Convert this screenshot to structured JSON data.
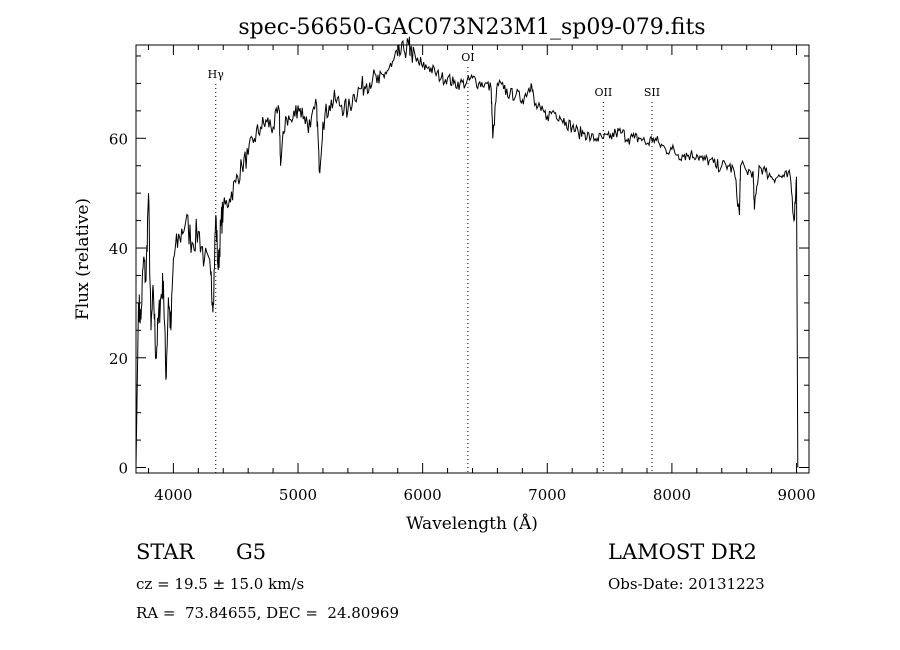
{
  "chart_data": {
    "type": "line",
    "title": "spec-56650-GAC073N23M1_sp09-079.fits",
    "xlabel": "Wavelength (Å)",
    "ylabel": "Flux (relative)",
    "xlim": [
      3700,
      9100
    ],
    "ylim": [
      -1,
      77
    ],
    "x_ticks": [
      4000,
      5000,
      6000,
      7000,
      8000,
      9000
    ],
    "y_ticks": [
      0,
      20,
      40,
      60
    ],
    "x_tick_labels": [
      "4000",
      "5000",
      "6000",
      "7000",
      "8000",
      "9000"
    ],
    "y_tick_labels": [
      "0",
      "20",
      "40",
      "60"
    ],
    "grid": false,
    "line_color": "#000000",
    "spectrum": {
      "x": [
        3700,
        3720,
        3740,
        3760,
        3780,
        3800,
        3820,
        3840,
        3860,
        3880,
        3900,
        3920,
        3940,
        3960,
        3980,
        4000,
        4050,
        4100,
        4150,
        4200,
        4250,
        4300,
        4320,
        4340,
        4360,
        4380,
        4400,
        4450,
        4500,
        4550,
        4600,
        4650,
        4700,
        4750,
        4800,
        4850,
        4860,
        4900,
        4950,
        5000,
        5050,
        5100,
        5150,
        5170,
        5200,
        5250,
        5300,
        5350,
        5400,
        5450,
        5500,
        5550,
        5600,
        5650,
        5700,
        5750,
        5800,
        5850,
        5890,
        5900,
        5950,
        6000,
        6050,
        6100,
        6150,
        6200,
        6250,
        6300,
        6350,
        6400,
        6450,
        6500,
        6550,
        6563,
        6600,
        6650,
        6700,
        6750,
        6800,
        6850,
        6870,
        6900,
        6950,
        7000,
        7050,
        7100,
        7150,
        7200,
        7250,
        7300,
        7350,
        7400,
        7450,
        7500,
        7550,
        7600,
        7650,
        7700,
        7750,
        7800,
        7850,
        7900,
        7950,
        8000,
        8050,
        8100,
        8150,
        8200,
        8250,
        8300,
        8350,
        8400,
        8450,
        8500,
        8542,
        8550,
        8600,
        8650,
        8662,
        8700,
        8750,
        8800,
        8850,
        8900,
        8950,
        8980,
        9000,
        9010
      ],
      "y": [
        0,
        30,
        27,
        38,
        34,
        50,
        25,
        32,
        20,
        27,
        31,
        34,
        16,
        31,
        25,
        38,
        42,
        45,
        41,
        43,
        38,
        35,
        30,
        46,
        36,
        44,
        47,
        49,
        52,
        55,
        57,
        60,
        62,
        63,
        62,
        65,
        55,
        64,
        63,
        66,
        64,
        62,
        66,
        54,
        63,
        66,
        67,
        66,
        65,
        68,
        69,
        70,
        71,
        70,
        72,
        73,
        75,
        76,
        77,
        76,
        74,
        73,
        73,
        72,
        71,
        71,
        70,
        70,
        70,
        71,
        70,
        70,
        69,
        60,
        70,
        69,
        68,
        68,
        67,
        69,
        70,
        66,
        65,
        64,
        65,
        64,
        63,
        62,
        61,
        61,
        60,
        60,
        60,
        60,
        61,
        61,
        60,
        60,
        60,
        59,
        60,
        59,
        58,
        58,
        57,
        57,
        57,
        57,
        56,
        56,
        55,
        55,
        55,
        54,
        46,
        55,
        54,
        54,
        47,
        55,
        54,
        53,
        53,
        53,
        53,
        45,
        53,
        0
      ]
    },
    "annotations": [
      {
        "label": "Hγ",
        "x": 4340
      },
      {
        "label": "OI",
        "x": 6363
      },
      {
        "label": "OII",
        "x": 7450
      },
      {
        "label": "SII",
        "x": 7840
      }
    ]
  },
  "info": {
    "class_label": "STAR",
    "subclass": "G5",
    "survey": "LAMOST DR2",
    "cz": "cz = 19.5 ± 15.0 km/s",
    "obs_date": "Obs-Date: 20131223",
    "radec": "RA =  73.84655, DEC =  24.80969"
  }
}
